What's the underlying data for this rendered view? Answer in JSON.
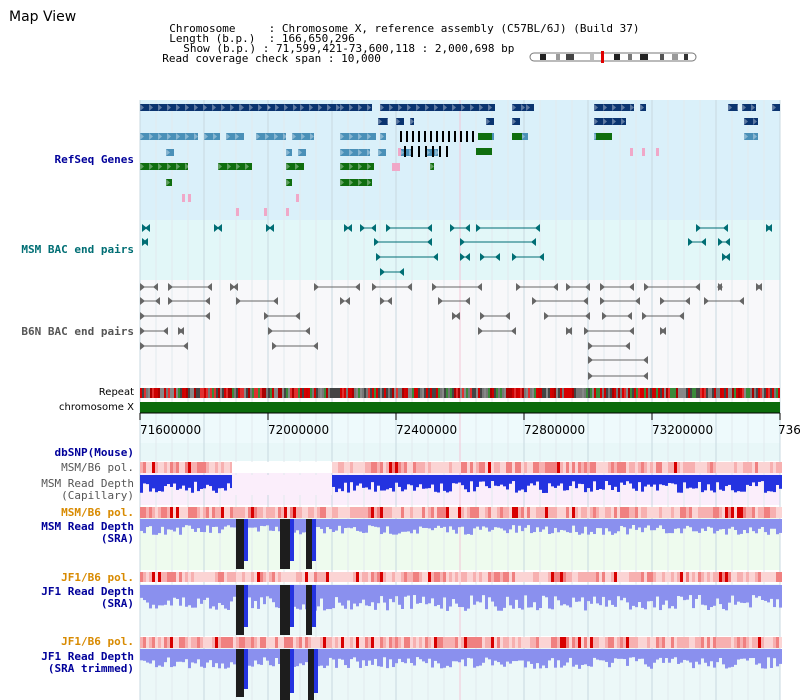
{
  "header": {
    "title": "Map View",
    "chromosome_label": "Chromosome",
    "chromosome_value": "Chromosome X, reference assembly (C57BL/6J) (Build 37)",
    "length_label": "Length (b.p.)",
    "length_value": "166,650,296",
    "show_label": "Show (b.p.)",
    "show_value": "71,599,421-73,600,118 : 2,000,698 bp",
    "coverage_label": "Read coverage check span",
    "coverage_value": "10,000"
  },
  "tracks": {
    "refseq": "RefSeq Genes",
    "msm_bac": "MSM BAC end pairs",
    "b6n_bac": "B6N BAC end pairs",
    "repeat": "Repeat",
    "chromosome": "chromosome X",
    "dbsnp": "dbSNP(Mouse)",
    "msm_pol": "MSM/B6 pol.",
    "msm_depth_cap": "MSM Read Depth\n(Capillary)",
    "msm_pol2": "MSM/B6 pol.",
    "msm_depth_sra": "MSM Read Depth\n(SRA)",
    "jf1_pol": "JF1/B6 pol.",
    "jf1_depth_sra": "JF1 Read Depth\n(SRA)",
    "jf1_pol2": "JF1/B6 pol.",
    "jf1_depth_trim": "JF1 Read Depth\n(SRA trimmed)"
  },
  "axis": {
    "ticks": [
      "71600000",
      "72000000",
      "72400000",
      "72800000",
      "73200000",
      "736"
    ]
  },
  "colors": {
    "label_blue": "#00009a",
    "label_teal": "#006e74",
    "label_orange": "#d88a00",
    "refseq_bg": "#daf0fa",
    "msm_bac_bg": "#e2f7f8",
    "gene_dark": "#0a3470",
    "gene_mid": "#4a90b8",
    "gene_green": "#0f6e0f",
    "chrom_green": "#0b6b0b",
    "depth_blue": "#2433e0",
    "depth_light": "#8a90ee"
  }
}
